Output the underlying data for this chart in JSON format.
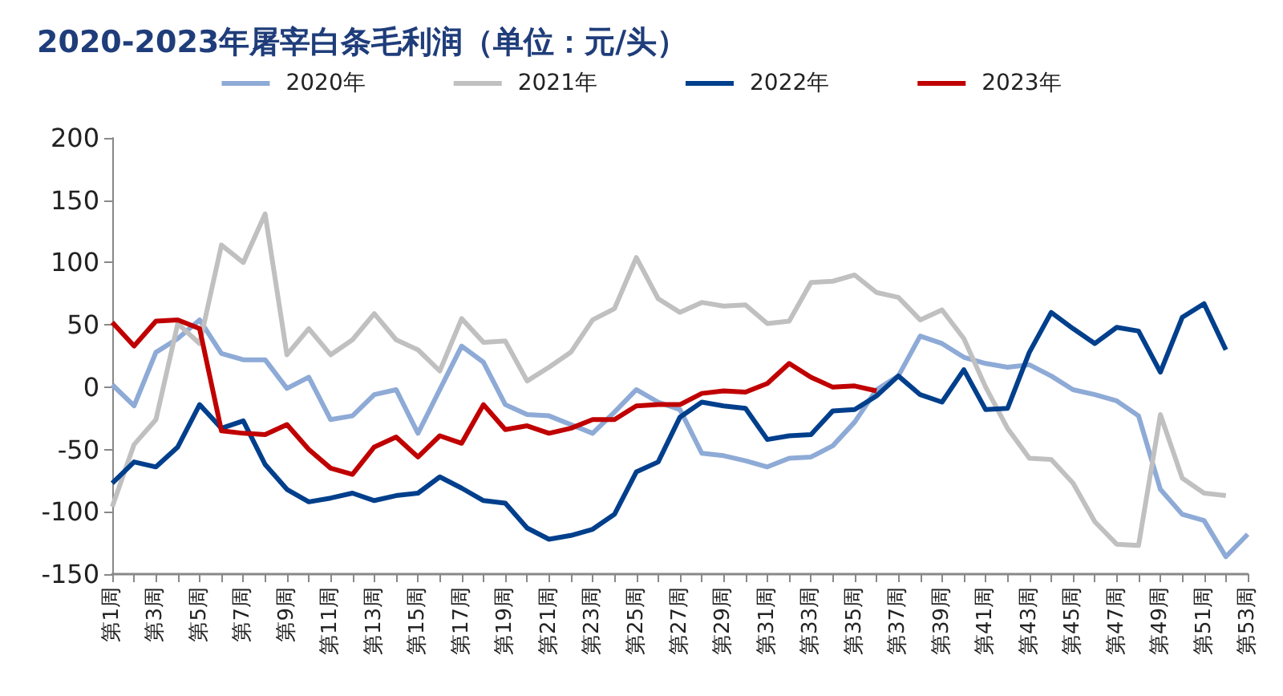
{
  "chart_data": {
    "type": "line",
    "title": "2020-2023年屠宰白条毛利润（单位：元/头）",
    "categories": [
      "第1周",
      null,
      "第3周",
      null,
      "第5周",
      null,
      "第7周",
      null,
      "第9周",
      null,
      "第11周",
      null,
      "第13周",
      null,
      "第15周",
      null,
      "第17周",
      null,
      "第19周",
      null,
      "第21周",
      null,
      "第23周",
      null,
      "第25周",
      null,
      "第27周",
      null,
      "第29周",
      null,
      "第31周",
      null,
      "第33周",
      null,
      "第35周",
      null,
      "第37周",
      null,
      "第39周",
      null,
      "第41周",
      null,
      "第43周",
      null,
      "第45周",
      null,
      "第47周",
      null,
      "第49周",
      null,
      "第51周",
      null,
      "第53周"
    ],
    "series": [
      {
        "name": "2020年",
        "color": "#8eaad6",
        "values": [
          2,
          -15,
          28,
          39,
          54,
          27,
          22,
          22,
          -1,
          8,
          -26,
          -23,
          -6,
          -2,
          -37,
          -2,
          33,
          20,
          -14,
          -22,
          -23,
          -30,
          -37,
          -20,
          -2,
          -12,
          -18,
          -53,
          -55,
          -59,
          -64,
          -57,
          -56,
          -47,
          -28,
          -2,
          9,
          41,
          35,
          24,
          19,
          16,
          18,
          9,
          -2,
          -6,
          -11,
          -23,
          -82,
          -102,
          -107,
          -136,
          -118
        ]
      },
      {
        "name": "2021年",
        "color": "#c0c0c0",
        "values": [
          -96,
          -46,
          -26,
          51,
          35,
          114,
          100,
          139,
          26,
          47,
          26,
          38,
          59,
          38,
          30,
          13,
          55,
          36,
          37,
          5,
          16,
          28,
          54,
          63,
          104,
          71,
          60,
          68,
          65,
          66,
          51,
          53,
          84,
          85,
          90,
          76,
          72,
          54,
          62,
          39,
          0,
          -33,
          -57,
          -58,
          -77,
          -108,
          -126,
          -127,
          -22,
          -73,
          -85,
          -87,
          null
        ]
      },
      {
        "name": "2022年",
        "color": "#003f8c",
        "values": [
          -77,
          -60,
          -64,
          -48,
          -14,
          -33,
          -27,
          -62,
          -82,
          -92,
          -89,
          -85,
          -91,
          -87,
          -85,
          -72,
          -81,
          -91,
          -93,
          -113,
          -122,
          -119,
          -114,
          -102,
          -68,
          -60,
          -24,
          -12,
          -15,
          -17,
          -42,
          -39,
          -38,
          -19,
          -18,
          -7,
          9,
          -6,
          -12,
          14,
          -18,
          -17,
          28,
          60,
          47,
          35,
          48,
          45,
          12,
          56,
          67,
          30,
          null
        ]
      },
      {
        "name": "2023年",
        "color": "#c00000",
        "values": [
          52,
          33,
          53,
          54,
          47,
          -35,
          -37,
          -38,
          -30,
          -50,
          -65,
          -70,
          -48,
          -40,
          -56,
          -39,
          -45,
          -14,
          -34,
          -31,
          -37,
          -33,
          -26,
          -26,
          -15,
          -14,
          -14,
          -5,
          -3,
          -4,
          3,
          19,
          8,
          0,
          1,
          -3,
          null,
          null,
          null,
          null,
          null,
          null,
          null,
          null,
          null,
          null,
          null,
          null,
          null,
          null,
          null,
          null,
          null
        ]
      }
    ],
    "ylim": [
      -150,
      200
    ],
    "yticks": [
      -150,
      -100,
      -50,
      0,
      50,
      100,
      150,
      200
    ],
    "grid": false,
    "legend": "top",
    "marker": "none",
    "line_style": "solid"
  }
}
